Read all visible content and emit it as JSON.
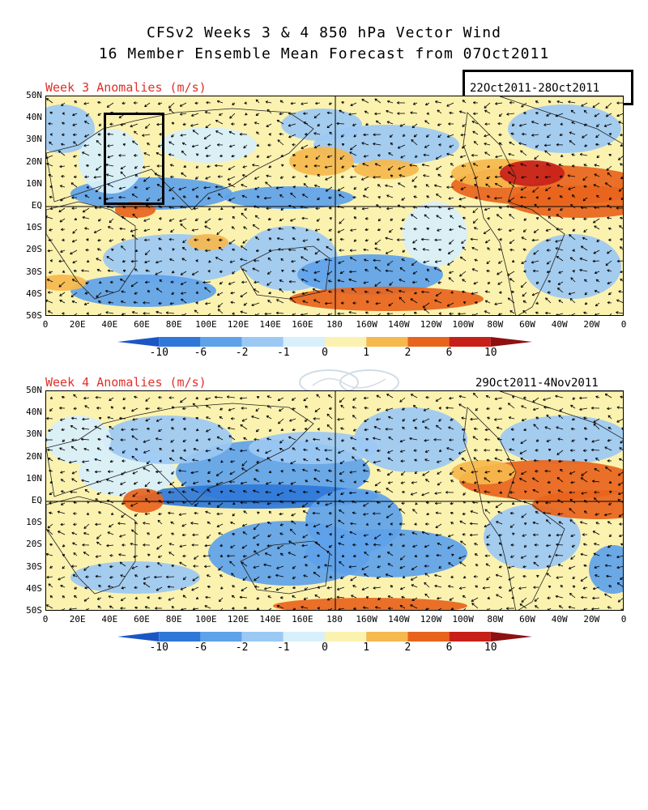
{
  "title_line1": "CFSv2 Weeks 3 & 4 850 hPa Vector Wind",
  "title_line2": "16 Member Ensemble Mean Forecast from 07Oct2011",
  "panels": [
    {
      "label": "Week 3 Anomalies (m/s)",
      "dates": "22Oct2011-28Oct2011"
    },
    {
      "label": "Week 4 Anomalies (m/s)",
      "dates": "29Oct2011-4Nov2011"
    }
  ],
  "lat_labels": [
    "50N",
    "40N",
    "30N",
    "20N",
    "10N",
    "EQ",
    "10S",
    "20S",
    "30S",
    "40S",
    "50S"
  ],
  "lon_labels": [
    "0",
    "20E",
    "40E",
    "60E",
    "80E",
    "100E",
    "120E",
    "140E",
    "160E",
    "180",
    "160W",
    "140W",
    "120W",
    "100W",
    "80W",
    "60W",
    "40W",
    "20W",
    "0"
  ],
  "colorbar": {
    "labels": [
      "-10",
      "-6",
      "-2",
      "-1",
      "0",
      "1",
      "2",
      "6",
      "10"
    ],
    "colors": [
      "#1a57c4",
      "#2f78d8",
      "#5ea2ea",
      "#9cc9f4",
      "#d8f0fb",
      "#fbf2b0",
      "#f6b94d",
      "#e8641c",
      "#c72019",
      "#8e1010"
    ]
  }
}
